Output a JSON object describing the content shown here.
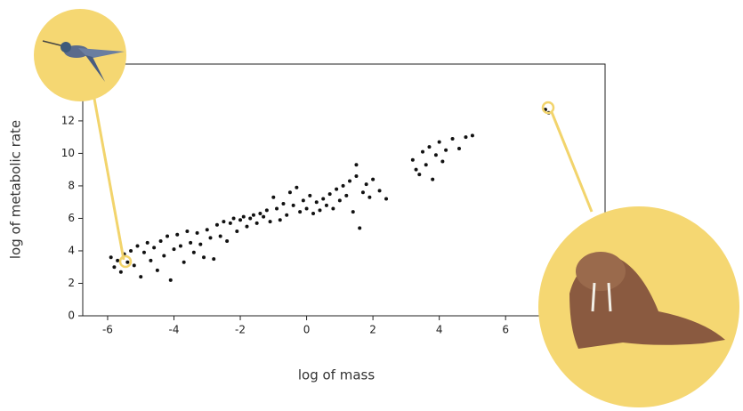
{
  "chart_data": {
    "type": "scatter",
    "xlabel": "log of mass",
    "ylabel": "log of metabolic rate",
    "color": "#111111",
    "xlim": [
      -6.75,
      9
    ],
    "ylim": [
      0,
      15.5
    ],
    "xticks": [
      -6,
      -4,
      -2,
      0,
      2,
      4,
      6
    ],
    "yticks": [
      0,
      2,
      4,
      6,
      8,
      10,
      12
    ],
    "x": [
      -5.9,
      -5.8,
      -5.6,
      -5.5,
      -5.4,
      -5.3,
      -5.2,
      -5.1,
      -5.0,
      -4.9,
      -4.8,
      -4.7,
      -4.6,
      -4.5,
      -4.4,
      -4.3,
      -4.2,
      -4.1,
      -4.0,
      -3.9,
      -3.8,
      -3.7,
      -3.6,
      -3.5,
      -3.4,
      -3.3,
      -3.2,
      -3.1,
      -3.0,
      -2.9,
      -2.8,
      -2.7,
      -2.6,
      -2.5,
      -2.4,
      -2.3,
      -2.2,
      -2.1,
      -2.0,
      -1.9,
      -1.8,
      -1.7,
      -1.6,
      -1.5,
      -1.4,
      -1.3,
      -1.2,
      -1.1,
      -1.0,
      -0.9,
      -0.8,
      -0.7,
      -0.6,
      -0.5,
      -0.4,
      -0.3,
      -0.2,
      -0.1,
      0.0,
      0.1,
      0.2,
      0.3,
      0.4,
      0.5,
      0.6,
      0.7,
      0.8,
      0.9,
      1.0,
      1.1,
      1.2,
      1.3,
      1.4,
      1.5,
      1.6,
      1.7,
      1.8,
      1.9,
      2.0,
      2.2,
      2.4,
      3.2,
      3.4,
      3.5,
      3.6,
      3.7,
      3.8,
      3.9,
      4.0,
      4.1,
      4.2,
      4.4,
      4.6,
      4.8,
      5.0,
      1.5,
      3.3,
      -5.7,
      7.2,
      7.3
    ],
    "values": [
      3.6,
      3.0,
      2.7,
      3.8,
      3.3,
      4.0,
      3.1,
      4.3,
      2.4,
      3.9,
      4.5,
      3.4,
      4.2,
      2.8,
      4.6,
      3.7,
      4.9,
      2.2,
      4.1,
      5.0,
      4.3,
      3.3,
      5.2,
      4.5,
      3.9,
      5.1,
      4.4,
      3.6,
      5.3,
      4.8,
      3.5,
      5.6,
      4.9,
      5.8,
      4.6,
      5.7,
      6.0,
      5.2,
      5.9,
      6.1,
      5.5,
      6.0,
      6.2,
      5.7,
      6.3,
      6.1,
      6.5,
      5.8,
      7.3,
      6.6,
      5.9,
      6.9,
      6.2,
      7.6,
      6.8,
      7.9,
      6.4,
      7.1,
      6.6,
      7.4,
      6.3,
      7.0,
      6.5,
      7.2,
      6.8,
      7.5,
      6.6,
      7.8,
      7.1,
      8.0,
      7.4,
      8.3,
      6.4,
      8.6,
      5.4,
      7.6,
      8.1,
      7.3,
      8.4,
      7.7,
      7.2,
      9.6,
      8.7,
      10.1,
      9.3,
      10.4,
      8.4,
      9.9,
      10.7,
      9.5,
      10.2,
      10.9,
      10.3,
      11.0,
      11.1,
      9.3,
      9.0,
      3.4,
      12.7,
      12.5
    ]
  }
}
